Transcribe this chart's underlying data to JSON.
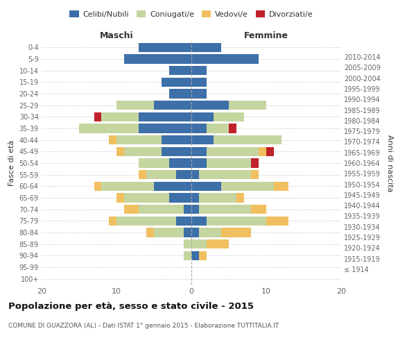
{
  "age_groups": [
    "100+",
    "95-99",
    "90-94",
    "85-89",
    "80-84",
    "75-79",
    "70-74",
    "65-69",
    "60-64",
    "55-59",
    "50-54",
    "45-49",
    "40-44",
    "35-39",
    "30-34",
    "25-29",
    "20-24",
    "15-19",
    "10-14",
    "5-9",
    "0-4"
  ],
  "birth_years": [
    "≤ 1914",
    "1915-1919",
    "1920-1924",
    "1925-1929",
    "1930-1934",
    "1935-1939",
    "1940-1944",
    "1945-1949",
    "1950-1954",
    "1955-1959",
    "1960-1964",
    "1965-1969",
    "1970-1974",
    "1975-1979",
    "1980-1984",
    "1985-1989",
    "1990-1994",
    "1995-1999",
    "2000-2004",
    "2005-2009",
    "2010-2014"
  ],
  "male_celibi": [
    0,
    0,
    0,
    0,
    1,
    2,
    1,
    3,
    5,
    2,
    3,
    4,
    4,
    7,
    7,
    5,
    3,
    4,
    3,
    9,
    7
  ],
  "male_coniugati": [
    0,
    0,
    1,
    1,
    4,
    8,
    6,
    6,
    7,
    4,
    4,
    5,
    6,
    8,
    5,
    5,
    0,
    0,
    0,
    0,
    0
  ],
  "male_vedovi": [
    0,
    0,
    0,
    0,
    1,
    1,
    2,
    1,
    1,
    1,
    0,
    1,
    1,
    0,
    0,
    0,
    0,
    0,
    0,
    0,
    0
  ],
  "male_divorziati": [
    0,
    0,
    0,
    0,
    0,
    0,
    0,
    0,
    0,
    0,
    0,
    0,
    0,
    0,
    1,
    0,
    0,
    0,
    0,
    0,
    0
  ],
  "fem_celibi": [
    0,
    0,
    1,
    0,
    1,
    2,
    1,
    1,
    4,
    1,
    2,
    2,
    3,
    2,
    3,
    5,
    2,
    2,
    2,
    9,
    4
  ],
  "fem_coniugati": [
    0,
    0,
    0,
    2,
    3,
    8,
    7,
    5,
    7,
    7,
    6,
    7,
    9,
    3,
    4,
    5,
    0,
    0,
    0,
    0,
    0
  ],
  "fem_vedovi": [
    0,
    0,
    1,
    3,
    4,
    3,
    2,
    1,
    2,
    1,
    0,
    1,
    0,
    0,
    0,
    0,
    0,
    0,
    0,
    0,
    0
  ],
  "fem_divorziati": [
    0,
    0,
    0,
    0,
    0,
    0,
    0,
    0,
    0,
    0,
    1,
    1,
    0,
    1,
    0,
    0,
    0,
    0,
    0,
    0,
    0
  ],
  "color_celibi": "#3d6fa8",
  "color_coniugati": "#c5d5a0",
  "color_vedovi": "#f0c060",
  "color_divorziati": "#c0202a",
  "xlim": 20,
  "title": "Popolazione per età, sesso e stato civile - 2015",
  "subtitle": "COMUNE DI GUAZZORA (AL) - Dati ISTAT 1° gennaio 2015 - Elaborazione TUTTITALIA.IT",
  "ylabel_left": "Fasce di età",
  "ylabel_right": "Anni di nascita",
  "xlabel_left": "Maschi",
  "xlabel_right": "Femmine",
  "legend_labels": [
    "Celibi/Nubili",
    "Coniugati/e",
    "Vedovi/e",
    "Divorziati/e"
  ],
  "background_color": "#ffffff",
  "bar_height": 0.8
}
